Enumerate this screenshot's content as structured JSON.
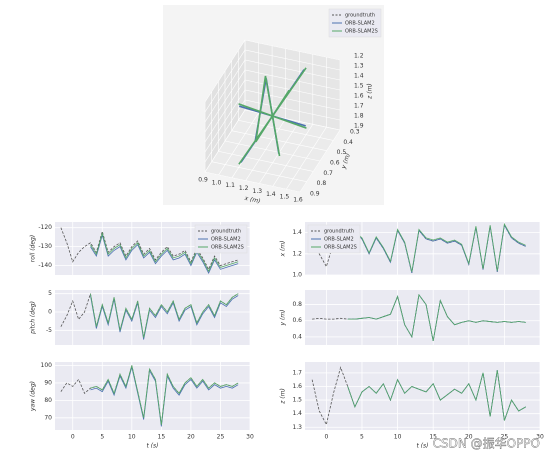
{
  "chart_data": [
    {
      "type": "line3d",
      "legend": "upper right",
      "xlabel": "x (m)",
      "ylabel": "y (m)",
      "zlabel": "z (m)",
      "xlim": [
        0.9,
        1.6
      ],
      "ylim": [
        0.3,
        0.9
      ],
      "zlim": [
        1.2,
        1.9
      ],
      "xticks": [
        0.9,
        {
          "value": 1,
          "label": "1.0"
        },
        1.1,
        1.2,
        1.3,
        1.4,
        1.5,
        1.6
      ],
      "yticks": [
        0.3,
        0.4,
        0.5,
        0.6,
        0.7,
        0.8,
        0.9
      ],
      "zticks": [
        1.2,
        1.3,
        1.4,
        1.5,
        1.6,
        1.7,
        1.8,
        1.9
      ],
      "series": [
        {
          "name": "groundtruth",
          "color": "#555555",
          "dash": true,
          "x": [
            1.0,
            1.5,
            1.25,
            1.25,
            1.25,
            1.1,
            1.4,
            1.25,
            1.35,
            1.15
          ],
          "y": [
            0.6,
            0.6,
            0.6,
            0.35,
            0.85,
            0.4,
            0.8,
            0.6,
            0.3,
            0.9
          ],
          "z": [
            1.5,
            1.6,
            1.55,
            1.55,
            1.55,
            1.4,
            1.7,
            1.55,
            1.35,
            1.75
          ]
        },
        {
          "name": "ORB-SLAM2",
          "color": "#4c72b0",
          "x": [
            1.01,
            1.49,
            1.25,
            1.26,
            1.24,
            1.11,
            1.39,
            1.25,
            1.34,
            1.16
          ],
          "y": [
            0.61,
            0.59,
            0.6,
            0.36,
            0.84,
            0.41,
            0.79,
            0.6,
            0.31,
            0.89
          ],
          "z": [
            1.51,
            1.59,
            1.55,
            1.54,
            1.56,
            1.41,
            1.69,
            1.55,
            1.36,
            1.74
          ]
        },
        {
          "name": "ORB-SLAM2S",
          "color": "#55a868",
          "x": [
            1.0,
            1.5,
            1.25,
            1.25,
            1.25,
            1.1,
            1.4,
            1.25,
            1.35,
            1.15
          ],
          "y": [
            0.6,
            0.6,
            0.6,
            0.35,
            0.85,
            0.4,
            0.8,
            0.6,
            0.3,
            0.9
          ],
          "z": [
            1.5,
            1.6,
            1.55,
            1.55,
            1.55,
            1.4,
            1.7,
            1.55,
            1.35,
            1.75
          ]
        }
      ]
    },
    {
      "type": "line",
      "legend": "upper right",
      "ylabel": "roll (deg)",
      "xlim": [
        -3,
        30
      ],
      "xticks": [
        0,
        5,
        10,
        15,
        20,
        25,
        30
      ],
      "ylim": [
        -145,
        -117
      ],
      "yticks": [
        -140,
        -130,
        -120
      ],
      "grid": true,
      "x": [
        -2,
        -1,
        0,
        1,
        2,
        3,
        4,
        5,
        6,
        7,
        8,
        9,
        10,
        11,
        12,
        13,
        14,
        15,
        16,
        17,
        18,
        19,
        20,
        21,
        22,
        23,
        24,
        25,
        26,
        27,
        28
      ],
      "series": [
        {
          "name": "groundtruth",
          "color": "#555555",
          "dash": true,
          "values": [
            -120,
            -128,
            -138,
            -133,
            -130,
            -128,
            -133,
            -122,
            -133,
            -130,
            -128,
            -135,
            -130,
            -127,
            -134,
            -131,
            -137,
            -133,
            -130,
            -135,
            -134,
            -132,
            -138,
            -131,
            -136,
            -142,
            -135,
            -140,
            -139,
            -138,
            -137
          ]
        },
        {
          "name": "ORB-SLAM2",
          "color": "#4c72b0",
          "values": [
            null,
            null,
            null,
            null,
            null,
            -130,
            -135,
            -124,
            -135,
            -132,
            -130,
            -137,
            -132,
            -129,
            -136,
            -133,
            -139,
            -135,
            -132,
            -137,
            -136,
            -134,
            -140,
            -133,
            -138,
            -144,
            -137,
            -142,
            -141,
            -140,
            -139
          ]
        },
        {
          "name": "ORB-SLAM2S",
          "color": "#55a868",
          "values": [
            null,
            null,
            null,
            null,
            null,
            -129,
            -134,
            -123,
            -134,
            -131,
            -129,
            -136,
            -131,
            -128,
            -135,
            -132,
            -138,
            -134,
            -131,
            -136,
            -135,
            -133,
            -139,
            -132,
            -137,
            -143,
            -136,
            -141,
            -140,
            -139,
            -138
          ]
        }
      ]
    },
    {
      "type": "line",
      "ylabel": "pitch (deg)",
      "xlim": [
        -3,
        30
      ],
      "xticks": [
        0,
        5,
        10,
        15,
        20,
        25,
        30
      ],
      "ylim": [
        -9,
        6
      ],
      "yticks": [
        -5,
        0,
        5
      ],
      "grid": true,
      "x": [
        -2,
        -1,
        0,
        1,
        2,
        3,
        4,
        5,
        6,
        7,
        8,
        9,
        10,
        11,
        12,
        13,
        14,
        15,
        16,
        17,
        18,
        19,
        20,
        21,
        22,
        23,
        24,
        25,
        26,
        27,
        28
      ],
      "series": [
        {
          "name": "groundtruth",
          "color": "#555555",
          "dash": true,
          "values": [
            -4,
            -1,
            3,
            -2,
            0,
            5,
            -4,
            2,
            -3,
            4,
            -5,
            1,
            -2,
            3,
            -7,
            1,
            -1,
            2,
            0,
            3,
            -2,
            1,
            2,
            -3,
            0,
            2,
            -1,
            3,
            2,
            4,
            5
          ]
        },
        {
          "name": "ORB-SLAM2",
          "color": "#4c72b0",
          "values": [
            null,
            null,
            null,
            null,
            null,
            4.5,
            -4.5,
            1.5,
            -3.5,
            3.5,
            -5.5,
            0.5,
            -2.5,
            2.5,
            -7.5,
            0.5,
            -1.5,
            1.5,
            -0.5,
            2.5,
            -2.5,
            0.5,
            1.5,
            -3.5,
            -0.5,
            1.5,
            -1.5,
            2.5,
            1.5,
            3.5,
            4.5
          ]
        },
        {
          "name": "ORB-SLAM2S",
          "color": "#55a868",
          "values": [
            null,
            null,
            null,
            null,
            null,
            5,
            -4,
            2,
            -3,
            4,
            -5,
            1,
            -2,
            3,
            -7,
            1,
            -1,
            2,
            0,
            3,
            -2,
            1,
            2,
            -3,
            0,
            2,
            -1,
            3,
            2,
            4,
            5
          ]
        }
      ]
    },
    {
      "type": "line",
      "ylabel": "yaw (deg)",
      "xlabel": "t (s)",
      "xlim": [
        -3,
        30
      ],
      "xticks": [
        0,
        5,
        10,
        15,
        20,
        25,
        30
      ],
      "ylim": [
        63,
        102
      ],
      "yticks": [
        70,
        80,
        90,
        100
      ],
      "grid": true,
      "x": [
        -2,
        -1,
        0,
        1,
        2,
        3,
        4,
        5,
        6,
        7,
        8,
        9,
        10,
        11,
        12,
        13,
        14,
        15,
        16,
        17,
        18,
        19,
        20,
        21,
        22,
        23,
        24,
        25,
        26,
        27,
        28
      ],
      "series": [
        {
          "name": "groundtruth",
          "color": "#555555",
          "dash": true,
          "values": [
            85,
            90,
            88,
            92,
            84,
            87,
            88,
            86,
            92,
            84,
            95,
            88,
            100,
            85,
            70,
            98,
            92,
            66,
            95,
            88,
            84,
            90,
            93,
            88,
            92,
            87,
            90,
            88,
            89,
            88,
            90
          ]
        },
        {
          "name": "ORB-SLAM2",
          "color": "#4c72b0",
          "values": [
            null,
            null,
            null,
            null,
            null,
            86,
            87,
            85,
            91,
            83,
            94,
            87,
            99,
            84,
            69,
            97,
            91,
            65,
            94,
            87,
            83,
            89,
            92,
            87,
            91,
            86,
            89,
            87,
            88,
            87,
            89
          ]
        },
        {
          "name": "ORB-SLAM2S",
          "color": "#55a868",
          "values": [
            null,
            null,
            null,
            null,
            null,
            87,
            88,
            86,
            92,
            84,
            95,
            88,
            100,
            85,
            70,
            98,
            92,
            66,
            95,
            88,
            84,
            90,
            93,
            88,
            92,
            87,
            90,
            88,
            89,
            88,
            90
          ]
        }
      ]
    },
    {
      "type": "line",
      "legend": "upper left",
      "ylabel": "x (m)",
      "xlim": [
        -3,
        30
      ],
      "xticks": [
        0,
        5,
        10,
        15,
        20,
        25,
        30
      ],
      "ylim": [
        1.0,
        1.5
      ],
      "yticks": [
        {
          "value": 1,
          "label": "1.0"
        },
        1.2,
        1.4
      ],
      "grid": true,
      "x": [
        -2,
        -1,
        0,
        1,
        2,
        3,
        4,
        5,
        6,
        7,
        8,
        9,
        10,
        11,
        12,
        13,
        14,
        15,
        16,
        17,
        18,
        19,
        20,
        21,
        22,
        23,
        24,
        25,
        26,
        27,
        28
      ],
      "series": [
        {
          "name": "groundtruth",
          "color": "#555555",
          "dash": true,
          "values": [
            1.42,
            1.2,
            1.08,
            1.3,
            1.38,
            1.25,
            1.4,
            1.34,
            1.2,
            1.35,
            1.25,
            1.12,
            1.42,
            1.3,
            1.02,
            1.42,
            1.34,
            1.32,
            1.34,
            1.3,
            1.32,
            1.28,
            1.1,
            1.45,
            1.05,
            1.46,
            1.03,
            1.47,
            1.35,
            1.3,
            1.27
          ]
        },
        {
          "name": "ORB-SLAM2",
          "color": "#4c72b0",
          "values": [
            null,
            null,
            null,
            null,
            null,
            1.25,
            1.4,
            1.34,
            1.2,
            1.35,
            1.25,
            1.12,
            1.42,
            1.3,
            1.02,
            1.42,
            1.34,
            1.32,
            1.34,
            1.3,
            1.32,
            1.28,
            1.1,
            1.45,
            1.05,
            1.46,
            1.03,
            1.47,
            1.35,
            1.3,
            1.27
          ]
        },
        {
          "name": "ORB-SLAM2S",
          "color": "#55a868",
          "values": [
            null,
            null,
            null,
            null,
            null,
            1.26,
            1.41,
            1.35,
            1.21,
            1.36,
            1.26,
            1.13,
            1.43,
            1.31,
            1.03,
            1.43,
            1.35,
            1.33,
            1.35,
            1.31,
            1.33,
            1.29,
            1.11,
            1.46,
            1.06,
            1.47,
            1.04,
            1.48,
            1.36,
            1.31,
            1.28
          ]
        }
      ]
    },
    {
      "type": "line",
      "ylabel": "y (m)",
      "xlim": [
        -3,
        30
      ],
      "xticks": [
        0,
        5,
        10,
        15,
        20,
        25,
        30
      ],
      "ylim": [
        0.3,
        0.98
      ],
      "yticks": [
        0.4,
        0.6,
        0.8
      ],
      "grid": true,
      "x": [
        -2,
        -1,
        0,
        1,
        2,
        3,
        4,
        5,
        6,
        7,
        8,
        9,
        10,
        11,
        12,
        13,
        14,
        15,
        16,
        17,
        18,
        19,
        20,
        21,
        22,
        23,
        24,
        25,
        26,
        27,
        28
      ],
      "series": [
        {
          "name": "groundtruth",
          "color": "#555555",
          "dash": true,
          "values": [
            0.62,
            0.63,
            0.62,
            0.62,
            0.63,
            0.62,
            0.62,
            0.63,
            0.64,
            0.62,
            0.65,
            0.68,
            0.9,
            0.55,
            0.4,
            0.92,
            0.8,
            0.35,
            0.85,
            0.65,
            0.55,
            0.58,
            0.6,
            0.58,
            0.6,
            0.59,
            0.58,
            0.59,
            0.58,
            0.59,
            0.58
          ]
        },
        {
          "name": "ORB-SLAM2",
          "color": "#4c72b0",
          "values": [
            null,
            null,
            null,
            null,
            null,
            0.62,
            0.62,
            0.63,
            0.64,
            0.62,
            0.65,
            0.68,
            0.9,
            0.55,
            0.4,
            0.92,
            0.8,
            0.35,
            0.85,
            0.65,
            0.55,
            0.58,
            0.6,
            0.58,
            0.6,
            0.59,
            0.58,
            0.59,
            0.58,
            0.59,
            0.58
          ]
        },
        {
          "name": "ORB-SLAM2S",
          "color": "#55a868",
          "values": [
            null,
            null,
            null,
            null,
            null,
            0.62,
            0.62,
            0.63,
            0.64,
            0.62,
            0.65,
            0.68,
            0.9,
            0.55,
            0.4,
            0.92,
            0.8,
            0.35,
            0.85,
            0.65,
            0.55,
            0.58,
            0.6,
            0.58,
            0.6,
            0.59,
            0.58,
            0.59,
            0.58,
            0.59,
            0.58
          ]
        }
      ]
    },
    {
      "type": "line",
      "ylabel": "z (m)",
      "xlabel": "t (s)",
      "xlim": [
        -3,
        30
      ],
      "xticks": [
        0,
        5,
        10,
        15,
        20,
        25,
        30
      ],
      "ylim": [
        1.28,
        1.78
      ],
      "yticks": [
        1.3,
        1.4,
        1.5,
        1.6,
        1.7
      ],
      "grid": true,
      "x": [
        -2,
        -1,
        0,
        1,
        2,
        3,
        4,
        5,
        6,
        7,
        8,
        9,
        10,
        11,
        12,
        13,
        14,
        15,
        16,
        17,
        18,
        19,
        20,
        21,
        22,
        23,
        24,
        25,
        26,
        27,
        28
      ],
      "series": [
        {
          "name": "groundtruth",
          "color": "#555555",
          "dash": true,
          "values": [
            1.65,
            1.42,
            1.32,
            1.55,
            1.74,
            1.6,
            1.45,
            1.56,
            1.6,
            1.55,
            1.62,
            1.5,
            1.65,
            1.55,
            1.6,
            1.58,
            1.56,
            1.62,
            1.5,
            1.54,
            1.58,
            1.55,
            1.62,
            1.5,
            1.7,
            1.38,
            1.72,
            1.35,
            1.5,
            1.42,
            1.45
          ]
        },
        {
          "name": "ORB-SLAM2",
          "color": "#4c72b0",
          "values": [
            null,
            null,
            null,
            null,
            null,
            1.6,
            1.45,
            1.56,
            1.6,
            1.55,
            1.62,
            1.5,
            1.65,
            1.55,
            1.6,
            1.58,
            1.56,
            1.62,
            1.5,
            1.54,
            1.58,
            1.55,
            1.62,
            1.5,
            1.7,
            1.38,
            1.72,
            1.35,
            1.5,
            1.42,
            1.45
          ]
        },
        {
          "name": "ORB-SLAM2S",
          "color": "#55a868",
          "values": [
            null,
            null,
            null,
            null,
            null,
            1.6,
            1.45,
            1.56,
            1.6,
            1.55,
            1.62,
            1.5,
            1.65,
            1.55,
            1.6,
            1.58,
            1.56,
            1.62,
            1.5,
            1.54,
            1.58,
            1.55,
            1.62,
            1.5,
            1.7,
            1.38,
            1.72,
            1.35,
            1.5,
            1.42,
            1.45
          ]
        }
      ]
    }
  ],
  "watermark": "CSDN @振华OPPO"
}
